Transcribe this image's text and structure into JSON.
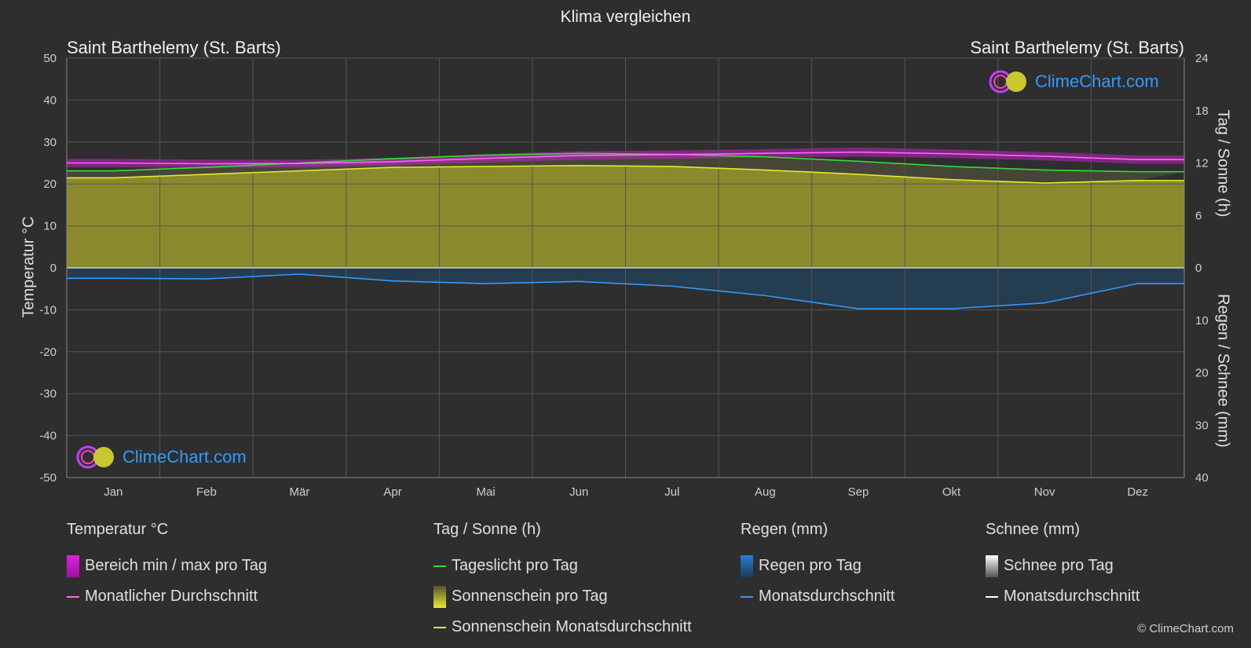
{
  "header": {
    "title": "Klima vergleichen",
    "location_left": "Saint Barthelemy (St. Barts)",
    "location_right": "Saint Barthelemy (St. Barts)"
  },
  "axes": {
    "left_label": "Temperatur °C",
    "right_top_label": "Tag / Sonne (h)",
    "right_bottom_label": "Regen / Schnee (mm)"
  },
  "logo_text": "ClimeChart.com",
  "copyright": "© ClimeChart.com",
  "legend": {
    "temperature": {
      "heading": "Temperatur °C",
      "range": "Bereich min / max pro Tag",
      "avg": "Monatlicher Durchschnitt"
    },
    "sun": {
      "heading": "Tag / Sonne (h)",
      "daylight": "Tageslicht pro Tag",
      "sunshine": "Sonnenschein pro Tag",
      "sunshine_avg": "Sonnenschein Monatsdurchschnitt"
    },
    "rain": {
      "heading": "Regen (mm)",
      "per_day": "Regen pro Tag",
      "avg": "Monatsdurchschnitt"
    },
    "snow": {
      "heading": "Schnee (mm)",
      "per_day": "Schnee pro Tag",
      "avg": "Monatsdurchschnitt"
    }
  },
  "colors": {
    "background": "#2e2e2e",
    "temp_range": "#e020e0",
    "temp_avg": "#ff66ff",
    "daylight": "#33dd33",
    "sunshine_fill": "#9a9a2c",
    "sunshine_avg": "#e8e830",
    "rain": "#2a7fd4",
    "rain_avg": "#3399ff",
    "snow": "#dddddd",
    "snow_avg": "#ffffff"
  },
  "chart_data": {
    "type": "line",
    "months": [
      "Jan",
      "Feb",
      "Mär",
      "Apr",
      "Mai",
      "Jun",
      "Jul",
      "Aug",
      "Sep",
      "Okt",
      "Nov",
      "Dez"
    ],
    "left_axis": {
      "ticks": [
        50,
        40,
        30,
        20,
        10,
        0,
        -10,
        -20,
        -30,
        -40,
        -50
      ],
      "range": [
        -50,
        50
      ]
    },
    "right_top_axis": {
      "ticks": [
        24,
        18,
        12,
        6,
        0
      ],
      "range": [
        0,
        24
      ]
    },
    "right_bottom_axis": {
      "ticks": [
        0,
        10,
        20,
        30,
        40
      ],
      "range": [
        0,
        40
      ]
    },
    "series": [
      {
        "name": "Monatlicher Durchschnitt",
        "axis": "temp",
        "values": [
          25.0,
          24.8,
          24.9,
          25.3,
          26.1,
          26.8,
          27.0,
          27.3,
          27.6,
          27.2,
          26.6,
          25.8
        ]
      },
      {
        "name": "Tageslicht pro Tag",
        "axis": "hours",
        "values": [
          11.1,
          11.5,
          12.0,
          12.5,
          12.9,
          13.1,
          13.0,
          12.7,
          12.2,
          11.6,
          11.2,
          11.0
        ]
      },
      {
        "name": "Sonnenschein Monatsdurchschnitt",
        "axis": "hours",
        "values": [
          10.3,
          10.7,
          11.1,
          11.5,
          11.6,
          11.7,
          11.6,
          11.2,
          10.7,
          10.1,
          9.7,
          10.0
        ]
      },
      {
        "name": "Monatsdurchschnitt",
        "axis": "rain",
        "values": [
          2.0,
          2.1,
          1.2,
          2.5,
          3.0,
          2.6,
          3.5,
          5.3,
          7.8,
          7.8,
          6.7,
          3.0
        ]
      }
    ],
    "temp_range_band": {
      "min": [
        24.0,
        23.8,
        24.0,
        24.4,
        25.1,
        25.8,
        26.0,
        26.3,
        26.5,
        26.2,
        25.6,
        24.8
      ],
      "max": [
        26.0,
        25.8,
        25.8,
        26.2,
        27.1,
        27.8,
        28.0,
        28.3,
        28.7,
        28.2,
        27.6,
        26.8
      ]
    }
  }
}
